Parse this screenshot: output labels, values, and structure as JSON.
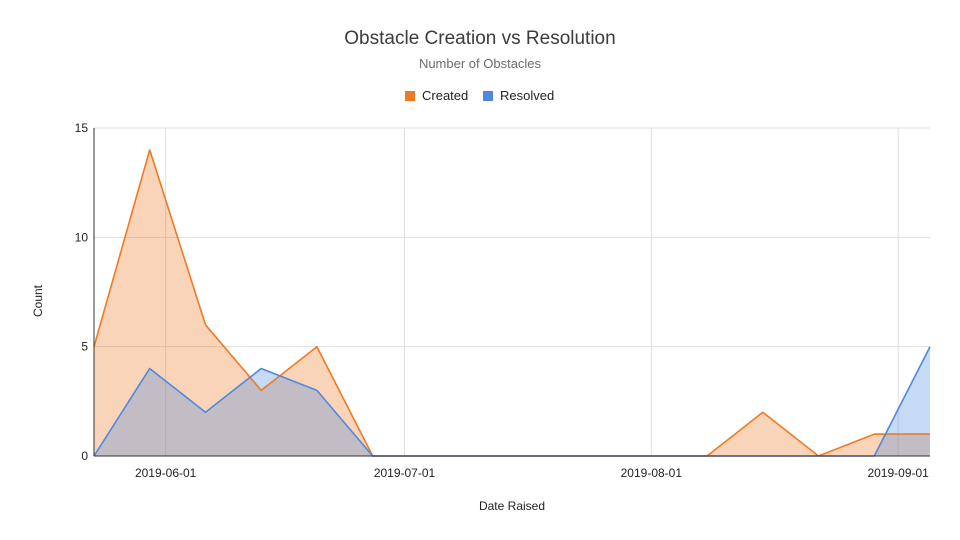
{
  "chart_data": {
    "type": "area",
    "title": "Obstacle Creation vs Resolution",
    "subtitle": "Number of Obstacles",
    "xlabel": "Date Raised",
    "ylabel": "Count",
    "x_ticks": [
      "2019-06-01",
      "2019-07-01",
      "2019-08-01",
      "2019-09-01"
    ],
    "y_ticks": [
      0,
      5,
      10,
      15
    ],
    "ylim": [
      0,
      15
    ],
    "xlim": [
      "2019-05-23",
      "2019-09-05"
    ],
    "grid": true,
    "legend_position": "top",
    "x": [
      "2019-05-23",
      "2019-05-30",
      "2019-06-06",
      "2019-06-13",
      "2019-06-20",
      "2019-06-27",
      "2019-07-04",
      "2019-07-11",
      "2019-07-18",
      "2019-07-25",
      "2019-08-01",
      "2019-08-08",
      "2019-08-15",
      "2019-08-22",
      "2019-08-29",
      "2019-09-05"
    ],
    "series": [
      {
        "name": "Created",
        "color": "#f07a24",
        "fill": "#f9c49f",
        "values": [
          5,
          14,
          6,
          3,
          5,
          0,
          0,
          0,
          0,
          0,
          0,
          0,
          2,
          0,
          1,
          1
        ]
      },
      {
        "name": "Resolved",
        "color": "#4f88e0",
        "fill": "#b9cff3",
        "values": [
          0,
          4,
          2,
          4,
          3,
          0,
          0,
          0,
          0,
          0,
          0,
          0,
          0,
          0,
          0,
          5
        ]
      }
    ]
  }
}
